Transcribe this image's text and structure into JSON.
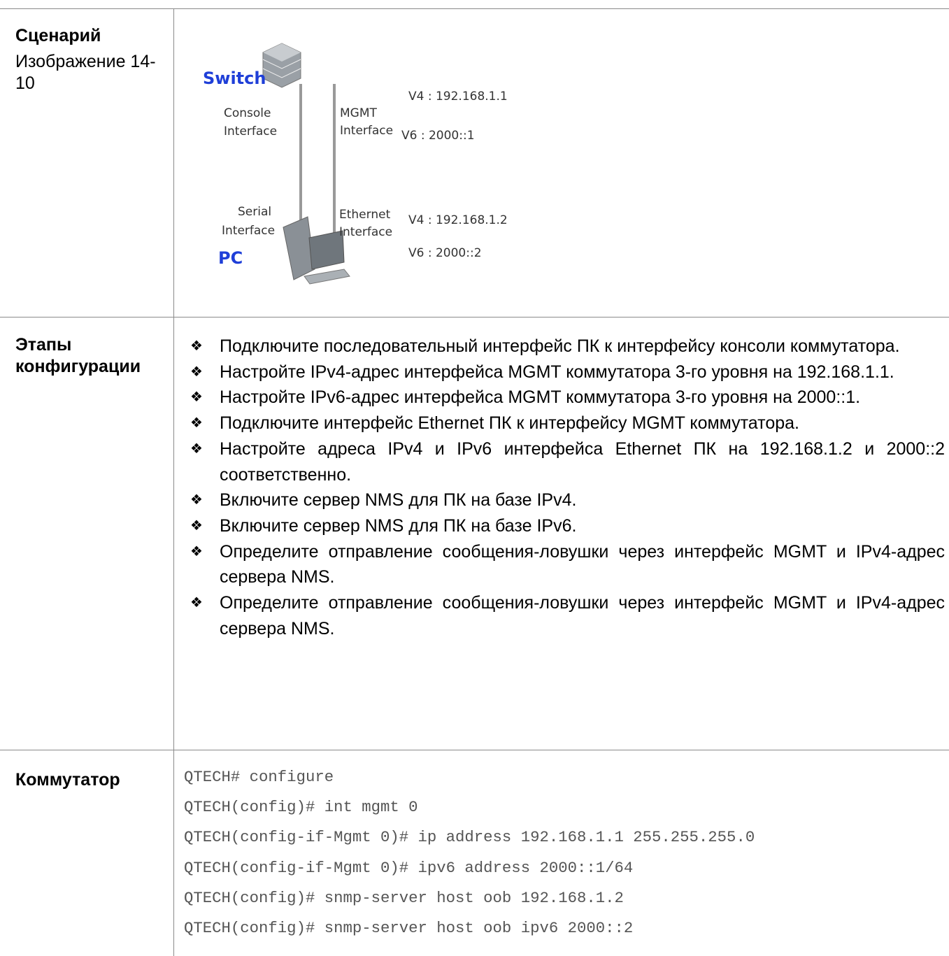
{
  "rows": [
    {
      "label": "Сценарий",
      "caption": "Изображение 14-10",
      "figure": {
        "switch": "Switch",
        "pc": "PC",
        "console": [
          "Console",
          "Interface"
        ],
        "mgmt": [
          "MGMT",
          "Interface"
        ],
        "serial": [
          "Serial",
          "Interface"
        ],
        "ethernet": [
          "Ethernet",
          "Interface"
        ],
        "switch_v4": "V4 : 192.168.1.1",
        "switch_v6": "V6 : 2000::1",
        "pc_v4": "V4 : 192.168.1.2",
        "pc_v6": "V6 : 2000::2"
      }
    },
    {
      "label": "Этапы конфигурации",
      "items": [
        "Подключите последовательный интерфейс ПК к интерфейсу консоли коммутатора.",
        "Настройте IPv4-адрес интерфейса MGMT коммутатора 3-го уровня на 192.168.1.1.",
        "Настройте IPv6-адрес интерфейса MGMT коммутатора 3-го уровня на 2000::1.",
        "Подключите интерфейс Ethernet ПК к интерфейсу MGMT коммутатора.",
        "Настройте адреса IPv4 и IPv6 интерфейса Ethernet ПК на 192.168.1.2 и 2000::2 соответственно.",
        "Включите сервер NMS для ПК на базе IPv4.",
        "Включите сервер NMS для ПК на базе IPv6.",
        "Определите отправление сообщения-ловушки через интерфейс MGMT и IPv4-адрес сервера NMS.",
        "Определите отправление сообщения-ловушки через интерфейс MGMT и IPv4-адрес сервера NMS."
      ]
    },
    {
      "label": "Коммутатор",
      "code": [
        "QTECH# configure",
        "QTECH(config)# int mgmt 0",
        "QTECH(config-if-Mgmt 0)# ip address 192.168.1.1 255.255.255.0",
        "QTECH(config-if-Mgmt 0)# ipv6 address 2000::1/64",
        "QTECH(config)# snmp-server host oob 192.168.1.2",
        "QTECH(config)# snmp-server host oob ipv6 2000::2"
      ]
    }
  ]
}
